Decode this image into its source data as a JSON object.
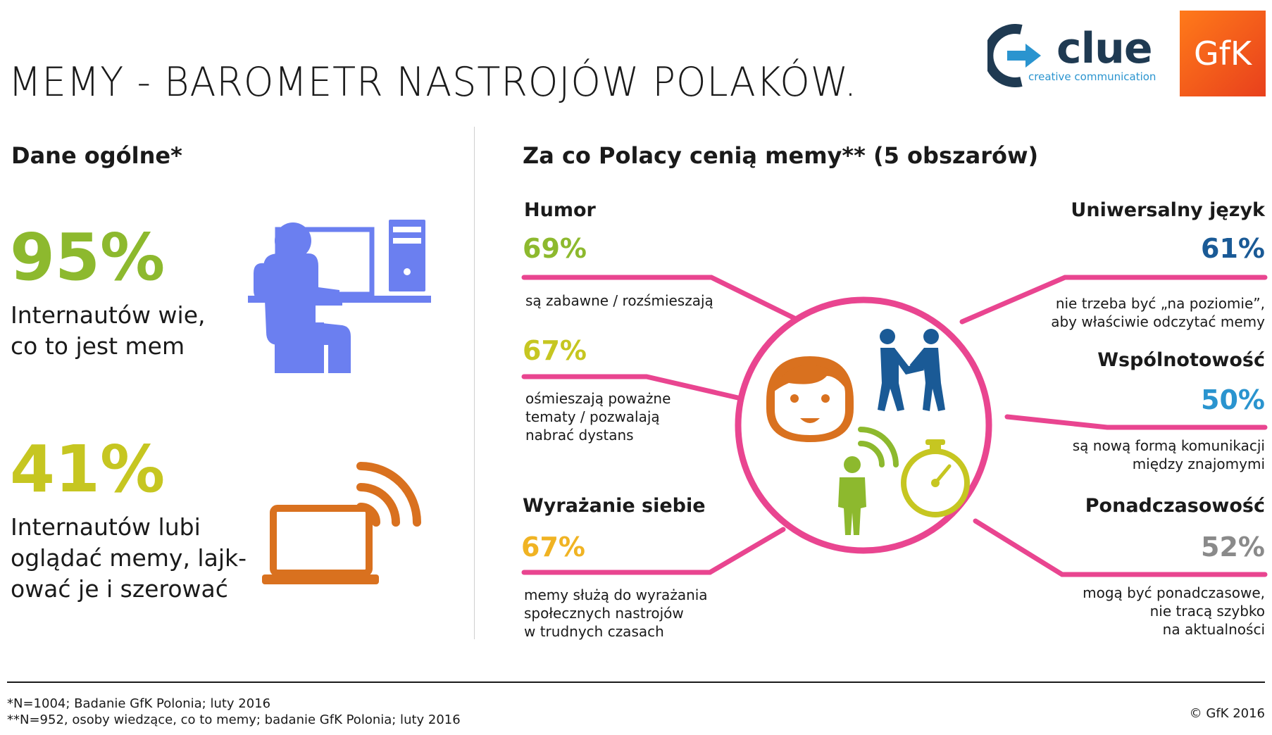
{
  "header": {
    "title": "MEMY - BAROMETR NASTROJÓW POLAKÓW.",
    "logo_clue_word": "clue",
    "logo_clue_tagline": "creative communication",
    "logo_gfk": "GfK"
  },
  "left": {
    "heading": "Dane ogólne*",
    "stat1": {
      "value": "95%",
      "line1": "Internautów wie,",
      "line2": "co to jest mem",
      "color": "#8db92e"
    },
    "stat2": {
      "value": "41%",
      "line1": "Internautów lubi",
      "line2": "oglądać memy, lajk-",
      "line3": "ować je i szerować",
      "color": "#c6c621"
    }
  },
  "right": {
    "heading": "Za co Polacy cenią memy** (5 obszarów)",
    "humor": {
      "label": "Humor",
      "a_value": "69%",
      "a_desc": "są zabawne / rozśmieszają",
      "a_color": "#8db92e",
      "b_value": "67%",
      "b_desc1": "ośmieszają poważne",
      "b_desc2": "tematy / pozwalają",
      "b_desc3": "nabrać dystans",
      "b_color": "#c6c621"
    },
    "wyrazanie": {
      "label": "Wyrażanie siebie",
      "value": "67%",
      "desc1": "memy służą do wyrażania",
      "desc2": "społecznych nastrojów",
      "desc3": "w trudnych czasach",
      "color": "#f0b323"
    },
    "uniwersalny": {
      "label": "Uniwersalny język",
      "value": "61%",
      "desc1": "nie trzeba być „na poziomie”,",
      "desc2": "aby właściwie odczytać memy",
      "color": "#1a5a96"
    },
    "wspolnotowosc": {
      "label": "Wspólnotowość",
      "value": "50%",
      "desc1": "są nową formą komunikacji",
      "desc2": "między znajomymi",
      "color": "#2a94cf"
    },
    "ponadczasowosc": {
      "label": "Ponadczasowość",
      "value": "52%",
      "desc1": "mogą być ponadczasowe,",
      "desc2": "nie tracą szybko",
      "desc3": "na aktualności",
      "color": "#8a8a8a"
    }
  },
  "footer": {
    "note1": "*N=1004; Badanie GfK Polonia; luty 2016",
    "note2": "**N=952, osoby wiedzące, co to memy;  badanie GfK Polonia; luty 2016",
    "copyright": "© GfK 2016"
  },
  "colors": {
    "pink": "#e94590",
    "blue_icon": "#6b7ff0",
    "orange_icon": "#d9711f"
  }
}
